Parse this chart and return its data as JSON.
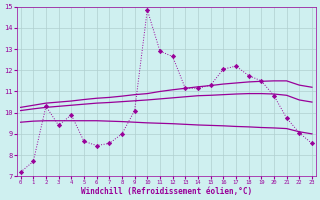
{
  "xlabel": "Windchill (Refroidissement éolien,°C)",
  "x": [
    0,
    1,
    2,
    3,
    4,
    5,
    6,
    7,
    8,
    9,
    10,
    11,
    12,
    13,
    14,
    15,
    16,
    17,
    18,
    19,
    20,
    21,
    22,
    23
  ],
  "line_dotted": [
    7.2,
    7.7,
    10.3,
    9.4,
    9.9,
    8.65,
    8.45,
    8.55,
    9.0,
    10.1,
    14.85,
    12.9,
    12.65,
    11.15,
    11.15,
    11.3,
    12.05,
    12.2,
    11.75,
    11.5,
    10.8,
    9.75,
    9.05,
    8.55
  ],
  "line_upper": [
    10.25,
    10.35,
    10.45,
    10.5,
    10.55,
    10.62,
    10.68,
    10.72,
    10.78,
    10.85,
    10.9,
    11.0,
    11.08,
    11.15,
    11.22,
    11.28,
    11.35,
    11.4,
    11.45,
    11.48,
    11.5,
    11.5,
    11.3,
    11.2
  ],
  "line_mid": [
    10.1,
    10.18,
    10.25,
    10.3,
    10.35,
    10.4,
    10.45,
    10.48,
    10.52,
    10.56,
    10.6,
    10.65,
    10.7,
    10.75,
    10.8,
    10.82,
    10.85,
    10.88,
    10.9,
    10.9,
    10.88,
    10.82,
    10.6,
    10.5
  ],
  "line_lower": [
    9.55,
    9.6,
    9.62,
    9.62,
    9.62,
    9.62,
    9.62,
    9.6,
    9.58,
    9.55,
    9.52,
    9.5,
    9.48,
    9.45,
    9.42,
    9.4,
    9.38,
    9.35,
    9.33,
    9.3,
    9.28,
    9.25,
    9.1,
    9.0
  ],
  "bg_color": "#cff0f0",
  "line_color": "#990099",
  "grid_color": "#b0d0d0",
  "ylim": [
    7,
    15
  ],
  "xlim": [
    0,
    23
  ]
}
